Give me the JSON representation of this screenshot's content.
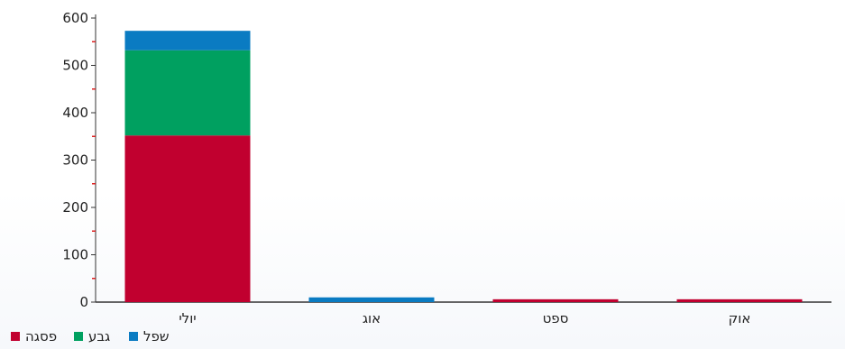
{
  "chart_data": {
    "type": "bar",
    "stacked": true,
    "categories": [
      "יולי",
      "אוג",
      "ספט",
      "אוק"
    ],
    "series": [
      {
        "name": "פסגה",
        "color": "#c1002f",
        "values": [
          352,
          0,
          6,
          6
        ]
      },
      {
        "name": "גבע",
        "color": "#00a060",
        "values": [
          180,
          0,
          0,
          0
        ]
      },
      {
        "name": "שפל",
        "color": "#0a7bc2",
        "values": [
          41,
          10,
          0,
          0
        ]
      }
    ],
    "ylim": [
      0,
      600
    ],
    "yticks": [
      0,
      100,
      200,
      300,
      400,
      500,
      600
    ],
    "ytick_labels": [
      "0",
      "100",
      "200",
      "300",
      "400",
      "500",
      "600"
    ],
    "minor_tick_color": "#dd2222",
    "title": "",
    "xlabel": "",
    "ylabel": "",
    "grid": false,
    "legend": {
      "position": "bottom-left",
      "items": [
        "פסגה",
        "גבע",
        "שפל"
      ]
    }
  }
}
